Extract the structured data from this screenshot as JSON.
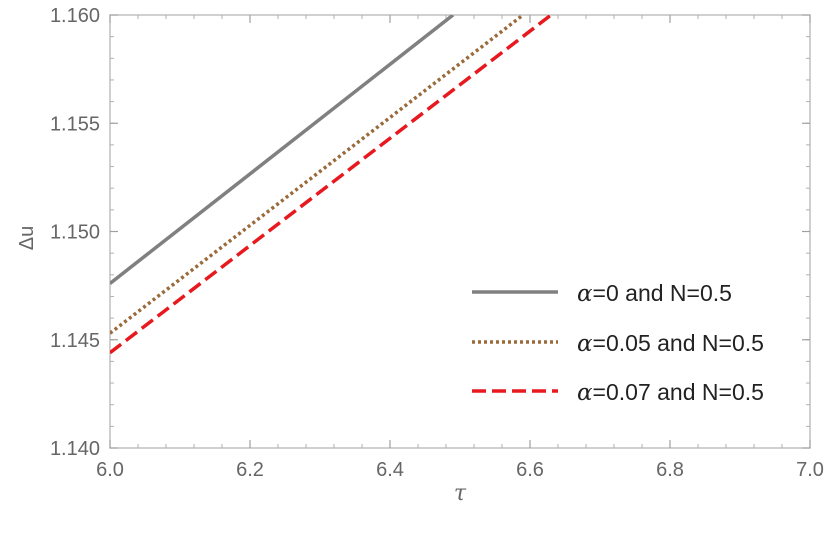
{
  "chart_data": {
    "type": "line",
    "title": "",
    "xlabel": "τ",
    "ylabel": "Δu",
    "xlim": [
      6.0,
      7.0
    ],
    "ylim": [
      1.14,
      1.16
    ],
    "x_ticks": [
      "6.0",
      "6.2",
      "6.4",
      "6.6",
      "6.8",
      "7.0"
    ],
    "y_ticks": [
      "1.140",
      "1.145",
      "1.150",
      "1.155",
      "1.160"
    ],
    "grid": false,
    "legend_position": "right",
    "series": [
      {
        "name_symbol": "α",
        "name_rest": "=0 and N=0.5",
        "color": "#808080",
        "dash": "solid",
        "x": [
          6.0,
          6.49
        ],
        "y": [
          1.1476,
          1.16
        ]
      },
      {
        "name_symbol": "α",
        "name_rest": "=0.05 and N=0.5",
        "color": "#9a6a3a",
        "dash": "dotted",
        "x": [
          6.0,
          6.59
        ],
        "y": [
          1.1453,
          1.16
        ]
      },
      {
        "name_symbol": "α",
        "name_rest": "=0.07 and N=0.5",
        "color": "#e8191e",
        "dash": "dashed",
        "x": [
          6.0,
          6.63
        ],
        "y": [
          1.1444,
          1.16
        ]
      }
    ]
  }
}
